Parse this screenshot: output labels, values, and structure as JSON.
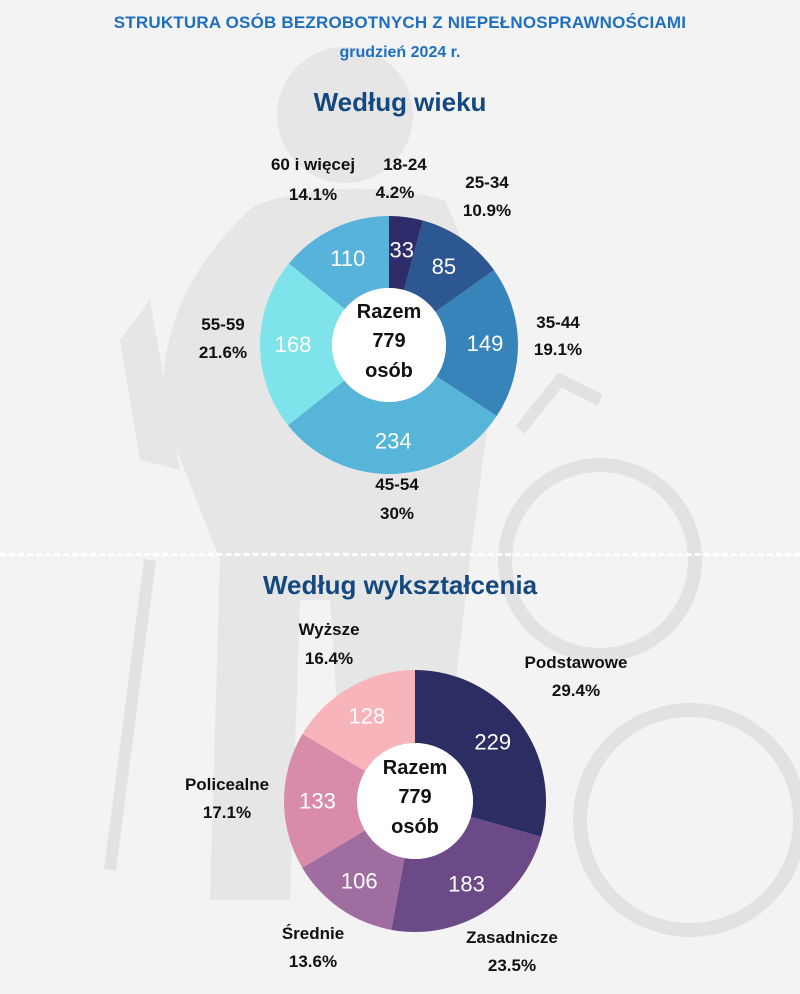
{
  "header": {
    "title": "STRUKTURA OSÓB BEZROBOTNYCH Z NIEPEŁNOSPRAWNOŚCIAMI",
    "subtitle": "grudzień 2024 r."
  },
  "chart_data": [
    {
      "type": "pie",
      "variant": "donut",
      "title": "Według wieku",
      "center_label": [
        "Razem",
        "779",
        "osób"
      ],
      "categories": [
        "18-24",
        "25-34",
        "35-44",
        "45-54",
        "55-59",
        "60 i więcej"
      ],
      "values": [
        33,
        85,
        149,
        234,
        168,
        110
      ],
      "percent_labels": [
        "4.2%",
        "10.9%",
        "19.1%",
        "30%",
        "21.6%",
        "14.1%"
      ],
      "colors": [
        "#2f2c6b",
        "#2d5791",
        "#3784bb",
        "#56b5d8",
        "#7ee3ea",
        "#58b3db"
      ]
    },
    {
      "type": "pie",
      "variant": "donut",
      "title": "Według wykształcenia",
      "center_label": [
        "Razem",
        "779",
        "osób"
      ],
      "categories": [
        "Podstawowe",
        "Zasadnicze",
        "Średnie",
        "Policealne",
        "Wyższe"
      ],
      "values": [
        229,
        183,
        106,
        133,
        128
      ],
      "percent_labels": [
        "29.4%",
        "23.5%",
        "13.6%",
        "17.1%",
        "16.4%"
      ],
      "colors": [
        "#2c2d63",
        "#6c4a87",
        "#9f6d9f",
        "#d98ca9",
        "#f8b4bb"
      ]
    }
  ]
}
